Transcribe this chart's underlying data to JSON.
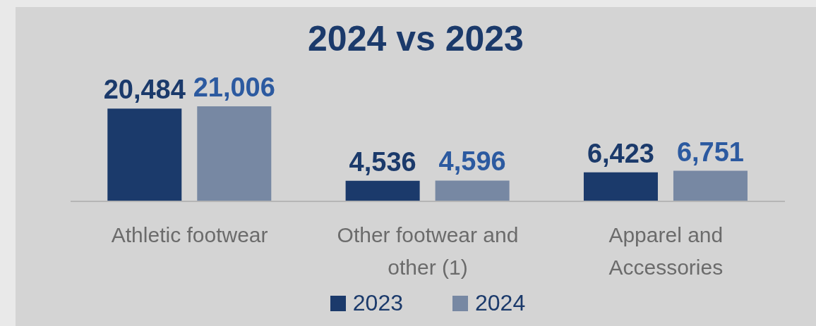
{
  "chart_data": {
    "type": "bar",
    "title": "2024 vs 2023",
    "categories": [
      "Athletic footwear",
      "Other footwear and other (1)",
      "Apparel and Accessories"
    ],
    "series": [
      {
        "name": "2023",
        "color": "#1b3a6b",
        "values": [
          20484,
          4536,
          6423
        ],
        "value_labels": [
          "20,484",
          "4,536",
          "6,423"
        ]
      },
      {
        "name": "2024",
        "color": "#7788a3",
        "values": [
          21006,
          4596,
          6751
        ],
        "value_labels": [
          "21,006",
          "4,596",
          "6,751"
        ]
      }
    ],
    "grid": false,
    "legend": "bottom"
  }
}
